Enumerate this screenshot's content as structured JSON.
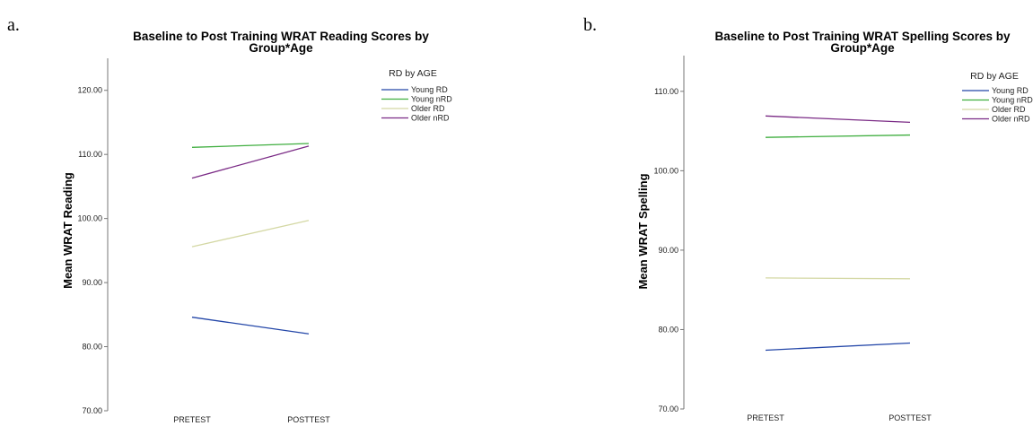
{
  "chart_data": [
    {
      "panel": "a.",
      "type": "line",
      "title_lines": [
        "Baseline to Post Training WRAT Reading Scores by",
        "Group*Age"
      ],
      "xlabel": "",
      "ylabel": "Mean WRAT Reading",
      "categories": [
        "PRETEST",
        "POSTTEST"
      ],
      "ylim": [
        70,
        125
      ],
      "yticks": [
        70,
        80,
        90,
        100,
        110,
        120
      ],
      "ytick_labels": [
        "70.00",
        "80.00",
        "90.00",
        "100.00",
        "110.00",
        "120.00"
      ],
      "legend_title": "RD by AGE",
      "legend_position": "top-right",
      "grid": false,
      "series": [
        {
          "name": "Young RD",
          "color": "#2346a8",
          "values": [
            84.6,
            82.0
          ]
        },
        {
          "name": "Young nRD",
          "color": "#3fae3f",
          "values": [
            111.1,
            111.7
          ]
        },
        {
          "name": "Older RD",
          "color": "#d4d8a4",
          "values": [
            95.6,
            99.7
          ]
        },
        {
          "name": "Older nRD",
          "color": "#7a2a85",
          "values": [
            106.3,
            111.3
          ]
        }
      ]
    },
    {
      "panel": "b.",
      "type": "line",
      "title_lines": [
        "Baseline to Post Training WRAT Spelling Scores by",
        "Group*Age"
      ],
      "xlabel": "",
      "ylabel": "Mean WRAT Spelling",
      "categories": [
        "PRETEST",
        "POSTTEST"
      ],
      "ylim": [
        70,
        114.5
      ],
      "yticks": [
        70,
        80,
        90,
        100,
        110
      ],
      "ytick_labels": [
        "70.00",
        "80.00",
        "90.00",
        "100.00",
        "110.00"
      ],
      "legend_title": "RD by AGE",
      "legend_position": "top-right",
      "grid": false,
      "series": [
        {
          "name": "Young RD",
          "color": "#2346a8",
          "values": [
            77.4,
            78.3
          ]
        },
        {
          "name": "Young nRD",
          "color": "#3fae3f",
          "values": [
            104.2,
            104.5
          ]
        },
        {
          "name": "Older RD",
          "color": "#d4d8a4",
          "values": [
            86.5,
            86.4
          ]
        },
        {
          "name": "Older nRD",
          "color": "#7a2a85",
          "values": [
            106.9,
            106.1
          ]
        }
      ]
    }
  ]
}
